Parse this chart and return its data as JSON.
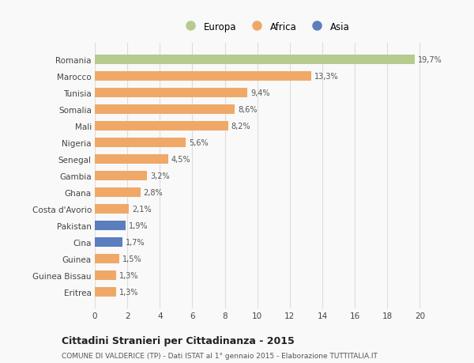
{
  "categories": [
    "Romania",
    "Marocco",
    "Tunisia",
    "Somalia",
    "Mali",
    "Nigeria",
    "Senegal",
    "Gambia",
    "Ghana",
    "Costa d'Avorio",
    "Pakistan",
    "Cina",
    "Guinea",
    "Guinea Bissau",
    "Eritrea"
  ],
  "values": [
    19.7,
    13.3,
    9.4,
    8.6,
    8.2,
    5.6,
    4.5,
    3.2,
    2.8,
    2.1,
    1.9,
    1.7,
    1.5,
    1.3,
    1.3
  ],
  "labels": [
    "19,7%",
    "13,3%",
    "9,4%",
    "8,6%",
    "8,2%",
    "5,6%",
    "4,5%",
    "3,2%",
    "2,8%",
    "2,1%",
    "1,9%",
    "1,7%",
    "1,5%",
    "1,3%",
    "1,3%"
  ],
  "colors": [
    "#b5cc8e",
    "#f0a868",
    "#f0a868",
    "#f0a868",
    "#f0a868",
    "#f0a868",
    "#f0a868",
    "#f0a868",
    "#f0a868",
    "#f0a868",
    "#5b7fbe",
    "#5b7fbe",
    "#f0a868",
    "#f0a868",
    "#f0a868"
  ],
  "legend_labels": [
    "Europa",
    "Africa",
    "Asia"
  ],
  "legend_colors": [
    "#b5cc8e",
    "#f0a868",
    "#5b7fbe"
  ],
  "title_bold": "Cittadini Stranieri per Cittadinanza - 2015",
  "subtitle": "COMUNE DI VALDERICE (TP) - Dati ISTAT al 1° gennaio 2015 - Elaborazione TUTTITALIA.IT",
  "xlim": [
    0,
    21
  ],
  "xticks": [
    0,
    2,
    4,
    6,
    8,
    10,
    12,
    14,
    16,
    18,
    20
  ],
  "background_color": "#f9f9f9",
  "grid_color": "#dddddd",
  "bar_height": 0.55
}
